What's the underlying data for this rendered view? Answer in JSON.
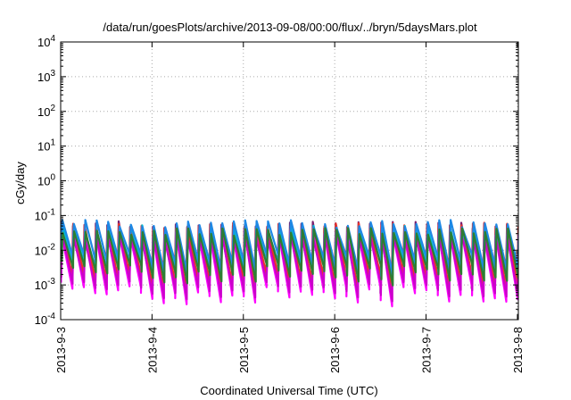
{
  "chart_data": {
    "type": "line",
    "title": "/data/run/goesPlots/archive/2013-09-08/00:00/flux/../bryn/5daysMars.plot",
    "xlabel": "Coordinated Universal Time (UTC)",
    "ylabel": "cGy/day",
    "yscale": "log",
    "ylim": [
      0.0001,
      10000
    ],
    "xlim": [
      "2013-09-03T00:00",
      "2013-09-08T00:15"
    ],
    "grid": true,
    "legend": "none",
    "y_ticks": [
      {
        "base": "10",
        "exp": "-4",
        "value": 0.0001
      },
      {
        "base": "10",
        "exp": "-3",
        "value": 0.001
      },
      {
        "base": "10",
        "exp": "-2",
        "value": 0.01
      },
      {
        "base": "10",
        "exp": "-1",
        "value": 0.1
      },
      {
        "base": "10",
        "exp": "0",
        "value": 1
      },
      {
        "base": "10",
        "exp": "1",
        "value": 10
      },
      {
        "base": "10",
        "exp": "2",
        "value": 100
      },
      {
        "base": "10",
        "exp": "3",
        "value": 1000
      },
      {
        "base": "10",
        "exp": "4",
        "value": 10000
      }
    ],
    "x_ticks": [
      {
        "label": "2013-9-3",
        "value": "2013-09-03T00:00"
      },
      {
        "label": "2013-9-4",
        "value": "2013-09-04T00:00"
      },
      {
        "label": "2013-9-5",
        "value": "2013-09-05T00:00"
      },
      {
        "label": "2013-9-6",
        "value": "2013-09-06T00:00"
      },
      {
        "label": "2013-9-7",
        "value": "2013-09-07T00:00"
      },
      {
        "label": "2013-9-8",
        "value": "2013-09-08T00:00"
      }
    ],
    "series_pattern": {
      "description": "sawtooth oscillation, roughly 8 cycles per day",
      "cycles_per_day": 8,
      "series": [
        {
          "color": "#7a1f6e",
          "peak": 0.055,
          "trough": 0.0008
        },
        {
          "color": "#e8322a",
          "peak": 0.05,
          "trough": 0.0012
        },
        {
          "color": "#ff00ff",
          "peak": 0.03,
          "trough": 0.0005
        },
        {
          "color": "#cc00cc",
          "peak": 0.025,
          "trough": 0.0007
        },
        {
          "color": "#00bcd4",
          "peak": 0.045,
          "trough": 0.0025
        },
        {
          "color": "#1e88e5",
          "peak": 0.06,
          "trough": 0.004
        },
        {
          "color": "#2e7d32",
          "peak": 0.035,
          "trough": 0.002
        }
      ]
    }
  }
}
